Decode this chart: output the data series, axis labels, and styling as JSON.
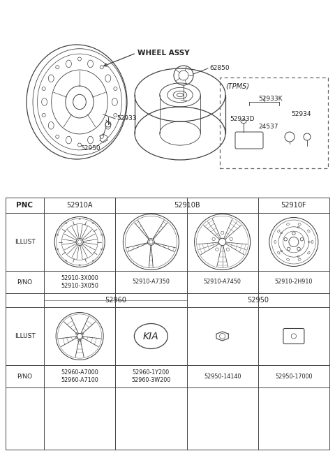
{
  "bg_color": "#ffffff",
  "line_color": "#404040",
  "text_color": "#222222",
  "table_line_color": "#444444",
  "top_section": {
    "wheel_assy_label": "WHEEL ASSY",
    "part_62850": "62850",
    "part_52933": "52933",
    "part_52950": "52950",
    "tpms_label": "(TPMS)",
    "tpms_52933K": "52933K",
    "tpms_52933D": "52933D",
    "tpms_52934": "52934",
    "tpms_24537": "24537"
  },
  "table": {
    "pnc_label": "PNC",
    "illust_label": "ILLUST",
    "pno_label": "P/NO",
    "header_row1": [
      "52910A",
      "52910B",
      "52910F"
    ],
    "header_row2_left": "52960",
    "header_row2_right": "52950",
    "pno_row1": [
      "52910-3X000\n52910-3X050",
      "52910-A7350",
      "52910-A7450",
      "52910-2H910"
    ],
    "pno_row2": [
      "52960-A7000\n52960-A7100",
      "52960-1Y200\n52960-3W200",
      "52950-14140",
      "52950-17000"
    ]
  }
}
